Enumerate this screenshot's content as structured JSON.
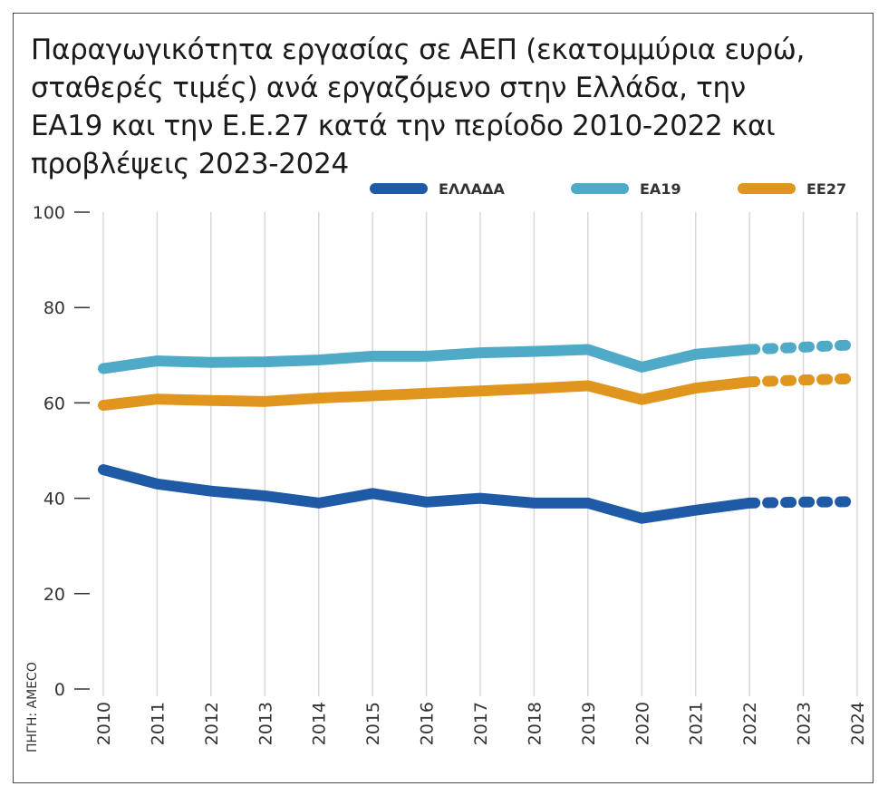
{
  "title": "Παραγωγικότητα εργασίας σε ΑΕΠ (εκατομμύρια ευρώ, σταθερές τιμές) ανά εργαζόμενο στην Ελλάδα, την ΕΑ19 και την Ε.Ε.27 κατά την περίοδο 2010-2022 και προβλέψεις 2023-2024",
  "source": "ΠΗΓΗ: AMECO",
  "colors": {
    "greece": "#1f5aa6",
    "ea19": "#4faac8",
    "ee27": "#e0951e",
    "grid": "#d8d8d8",
    "axis": "#333333"
  },
  "chart_data": {
    "type": "line",
    "title": "Παραγωγικότητα εργασίας σε ΑΕΠ (εκατομμύρια ευρώ, σταθερές τιμές) ανά εργαζόμενο στην Ελλάδα, την ΕΑ19 και την Ε.Ε.27 κατά την περίοδο 2010-2022 και προβλέψεις 2023-2024",
    "xlabel": "",
    "ylabel": "",
    "x": [
      "2010",
      "2011",
      "2012",
      "2013",
      "2014",
      "2015",
      "2016",
      "2017",
      "2018",
      "2019",
      "2020",
      "2021",
      "2022",
      "2023",
      "2024"
    ],
    "ylim": [
      0,
      100
    ],
    "yticks": [
      0,
      20,
      40,
      60,
      80,
      100
    ],
    "grid": "vertical",
    "legend": "top-right",
    "forecast_from": "2022",
    "series": [
      {
        "name": "ΕΛΛΑΔΑ",
        "color": "#1f5aa6",
        "values": [
          46,
          43,
          41.5,
          40.5,
          39,
          41,
          39.2,
          40,
          39,
          39,
          35.8,
          37.5,
          39,
          39.2,
          39.3
        ]
      },
      {
        "name": "ΕΑ19",
        "color": "#4faac8",
        "values": [
          67.2,
          68.8,
          68.5,
          68.6,
          69,
          69.8,
          69.8,
          70.5,
          70.8,
          71.2,
          67.5,
          70.2,
          71.2,
          71.7,
          72.2
        ]
      },
      {
        "name": "ΕΕ27",
        "color": "#e0951e",
        "values": [
          59.5,
          60.8,
          60.5,
          60.3,
          61,
          61.5,
          62,
          62.5,
          63,
          63.6,
          60.7,
          63.1,
          64.4,
          64.8,
          65.1
        ]
      }
    ]
  }
}
